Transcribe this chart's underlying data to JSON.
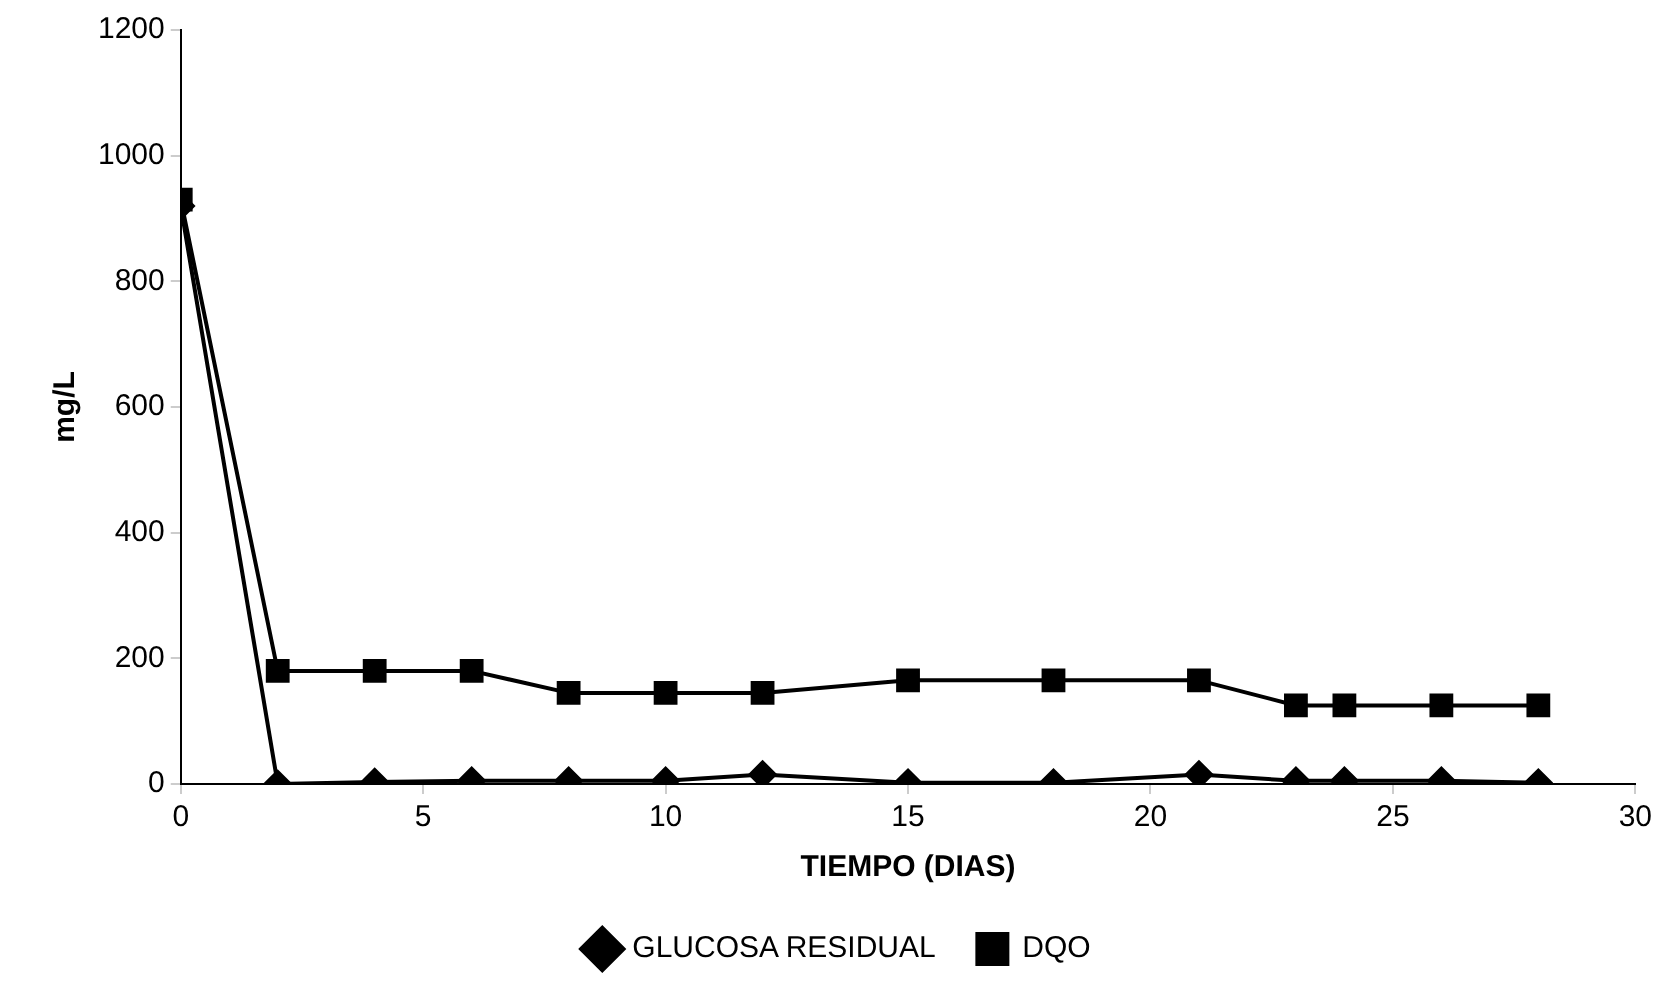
{
  "chart_data": {
    "type": "line",
    "xlabel": "TIEMPO (DIAS)",
    "ylabel": "mg/L",
    "xlim": [
      0,
      30
    ],
    "xticks": [
      0,
      5,
      10,
      15,
      20,
      25,
      30
    ],
    "ylim": [
      0,
      1200
    ],
    "yticks": [
      0,
      200,
      400,
      600,
      800,
      1000,
      1200
    ],
    "grid": false,
    "legend": "bottom",
    "line_style": "solid",
    "x": [
      0,
      2,
      4,
      6,
      8,
      10,
      12,
      15,
      18,
      21,
      23,
      24,
      26,
      28
    ],
    "series": [
      {
        "name": "GLUCOSA RESIDUAL",
        "color": "#000000",
        "marker": "diamond",
        "values": [
          920,
          0,
          3,
          5,
          5,
          5,
          15,
          2,
          2,
          15,
          5,
          5,
          5,
          2
        ]
      },
      {
        "name": "DQO",
        "color": "#000000",
        "marker": "square",
        "values": [
          930,
          180,
          180,
          180,
          145,
          145,
          145,
          165,
          165,
          165,
          125,
          125,
          125,
          125
        ]
      }
    ]
  }
}
